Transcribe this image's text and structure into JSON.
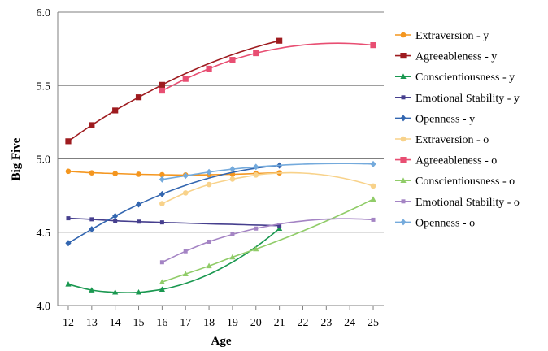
{
  "chart_data": {
    "type": "line",
    "title": "",
    "xlabel": "Age",
    "ylabel": "Big Five",
    "ylim": [
      4.0,
      6.0
    ],
    "xlim": [
      11.55,
      25.45
    ],
    "x_ticks": [
      12,
      13,
      14,
      15,
      16,
      17,
      18,
      19,
      20,
      21,
      22,
      23,
      24,
      25
    ],
    "y_ticks": [
      "4.0",
      "4.5",
      "5.0",
      "5.5",
      "6.0"
    ],
    "y_tick_values": [
      4.0,
      4.5,
      5.0,
      5.5,
      6.0
    ],
    "grid": "horizontal",
    "legend": "right",
    "series": [
      {
        "name": "Extraversion - y",
        "color": "#f4961f",
        "marker": "circle",
        "x": [
          12,
          13,
          14,
          15,
          16,
          17,
          18,
          19,
          20,
          21
        ],
        "y": [
          4.915,
          4.905,
          4.9,
          4.895,
          4.892,
          4.89,
          4.892,
          4.895,
          4.9,
          4.905
        ]
      },
      {
        "name": "Agreeableness - y",
        "color": "#9e1b1f",
        "marker": "square",
        "x": [
          12,
          13,
          14,
          15,
          16,
          21
        ],
        "y": [
          5.12,
          5.23,
          5.33,
          5.42,
          5.505,
          5.805
        ]
      },
      {
        "name": "Conscientiousness - y",
        "color": "#1a9850",
        "marker": "triangle",
        "x": [
          12,
          13,
          14,
          15,
          16,
          21
        ],
        "y": [
          4.145,
          4.105,
          4.09,
          4.09,
          4.11,
          4.525
        ]
      },
      {
        "name": "Emotional Stability - y",
        "color": "#463f8e",
        "marker": "square-small",
        "x": [
          12,
          13,
          14,
          15,
          16,
          21
        ],
        "y": [
          4.595,
          4.588,
          4.578,
          4.572,
          4.567,
          4.545
        ]
      },
      {
        "name": "Openness - y",
        "color": "#3366b0",
        "marker": "diamond",
        "x": [
          12,
          13,
          14,
          15,
          16,
          21
        ],
        "y": [
          4.425,
          4.52,
          4.61,
          4.69,
          4.76,
          4.955
        ]
      },
      {
        "name": "Extraversion - o",
        "color": "#f8d28a",
        "marker": "circle",
        "x": [
          16,
          17,
          18,
          19,
          20,
          25
        ],
        "y": [
          4.695,
          4.768,
          4.825,
          4.862,
          4.89,
          4.815
        ]
      },
      {
        "name": "Agreeableness - o",
        "color": "#e84e72",
        "marker": "square",
        "x": [
          16,
          17,
          18,
          19,
          20,
          25
        ],
        "y": [
          5.465,
          5.545,
          5.615,
          5.675,
          5.72,
          5.775
        ]
      },
      {
        "name": "Conscientiousness - o",
        "color": "#90cc68",
        "marker": "triangle",
        "x": [
          16,
          17,
          18,
          19,
          20,
          25
        ],
        "y": [
          4.16,
          4.215,
          4.27,
          4.33,
          4.385,
          4.725
        ]
      },
      {
        "name": "Emotional Stability - o",
        "color": "#a484c4",
        "marker": "square-small",
        "x": [
          16,
          17,
          18,
          19,
          20,
          25
        ],
        "y": [
          4.295,
          4.37,
          4.435,
          4.485,
          4.525,
          4.585
        ]
      },
      {
        "name": "Openness - o",
        "color": "#74aadc",
        "marker": "diamond",
        "x": [
          16,
          17,
          18,
          19,
          20,
          25
        ],
        "y": [
          4.86,
          4.885,
          4.91,
          4.93,
          4.945,
          4.965
        ]
      }
    ]
  }
}
